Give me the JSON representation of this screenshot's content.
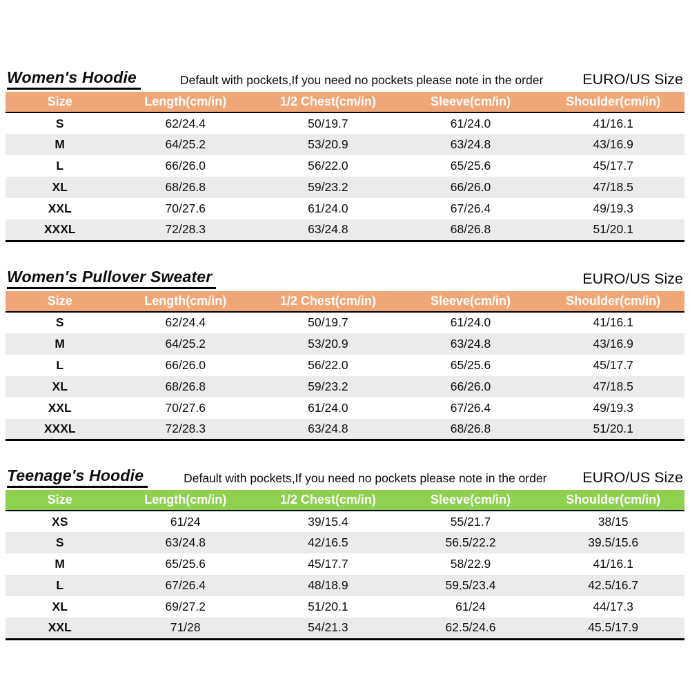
{
  "colors": {
    "header_orange": "#F0A778",
    "header_green": "#8DD14E",
    "row_alt_bg": "#EBEBEB",
    "header_text": "#FFFFFF",
    "border": "#000000"
  },
  "chart_data": [
    {
      "type": "table",
      "title": "Women's Hoodie",
      "note": "Default with pockets,If you need no pockets please note in the order",
      "size_system": "EURO/US Size",
      "header_bg": "#F0A778",
      "columns": [
        "Size",
        "Length(cm/in)",
        "1/2 Chest(cm/in)",
        "Sleeve(cm/in)",
        "Shoulder(cm/in)"
      ],
      "rows": [
        [
          "S",
          "62/24.4",
          "50/19.7",
          "61/24.0",
          "41/16.1"
        ],
        [
          "M",
          "64/25.2",
          "53/20.9",
          "63/24.8",
          "43/16.9"
        ],
        [
          "L",
          "66/26.0",
          "56/22.0",
          "65/25.6",
          "45/17.7"
        ],
        [
          "XL",
          "68/26.8",
          "59/23.2",
          "66/26.0",
          "47/18.5"
        ],
        [
          "XXL",
          "70/27.6",
          "61/24.0",
          "67/26.4",
          "49/19.3"
        ],
        [
          "XXXL",
          "72/28.3",
          "63/24.8",
          "68/26.8",
          "51/20.1"
        ]
      ]
    },
    {
      "type": "table",
      "title": "Women's Pullover Sweater",
      "note": "",
      "size_system": "EURO/US Size",
      "header_bg": "#F0A778",
      "columns": [
        "Size",
        "Length(cm/in)",
        "1/2 Chest(cm/in)",
        "Sleeve(cm/in)",
        "Shoulder(cm/in)"
      ],
      "rows": [
        [
          "S",
          "62/24.4",
          "50/19.7",
          "61/24.0",
          "41/16.1"
        ],
        [
          "M",
          "64/25.2",
          "53/20.9",
          "63/24.8",
          "43/16.9"
        ],
        [
          "L",
          "66/26.0",
          "56/22.0",
          "65/25.6",
          "45/17.7"
        ],
        [
          "XL",
          "68/26.8",
          "59/23.2",
          "66/26.0",
          "47/18.5"
        ],
        [
          "XXL",
          "70/27.6",
          "61/24.0",
          "67/26.4",
          "49/19.3"
        ],
        [
          "XXXL",
          "72/28.3",
          "63/24.8",
          "68/26.8",
          "51/20.1"
        ]
      ]
    },
    {
      "type": "table",
      "title": "Teenage's Hoodie",
      "note": "Default with pockets,If you need no pockets please note in the order",
      "size_system": "EURO/US Size",
      "header_bg": "#8DD14E",
      "columns": [
        "Size",
        "Length(cm/in)",
        "1/2 Chest(cm/in)",
        "Sleeve(cm/in)",
        "Shoulder(cm/in)"
      ],
      "rows": [
        [
          "XS",
          "61/24",
          "39/15.4",
          "55/21.7",
          "38/15"
        ],
        [
          "S",
          "63/24.8",
          "42/16.5",
          "56.5/22.2",
          "39.5/15.6"
        ],
        [
          "M",
          "65/25.6",
          "45/17.7",
          "58/22.9",
          "41/16.1"
        ],
        [
          "L",
          "67/26.4",
          "48/18.9",
          "59.5/23.4",
          "42.5/16.7"
        ],
        [
          "XL",
          "69/27.2",
          "51/20.1",
          "61/24",
          "44/17.3"
        ],
        [
          "XXL",
          "71/28",
          "54/21.3",
          "62.5/24.6",
          "45.5/17.9"
        ]
      ]
    }
  ]
}
